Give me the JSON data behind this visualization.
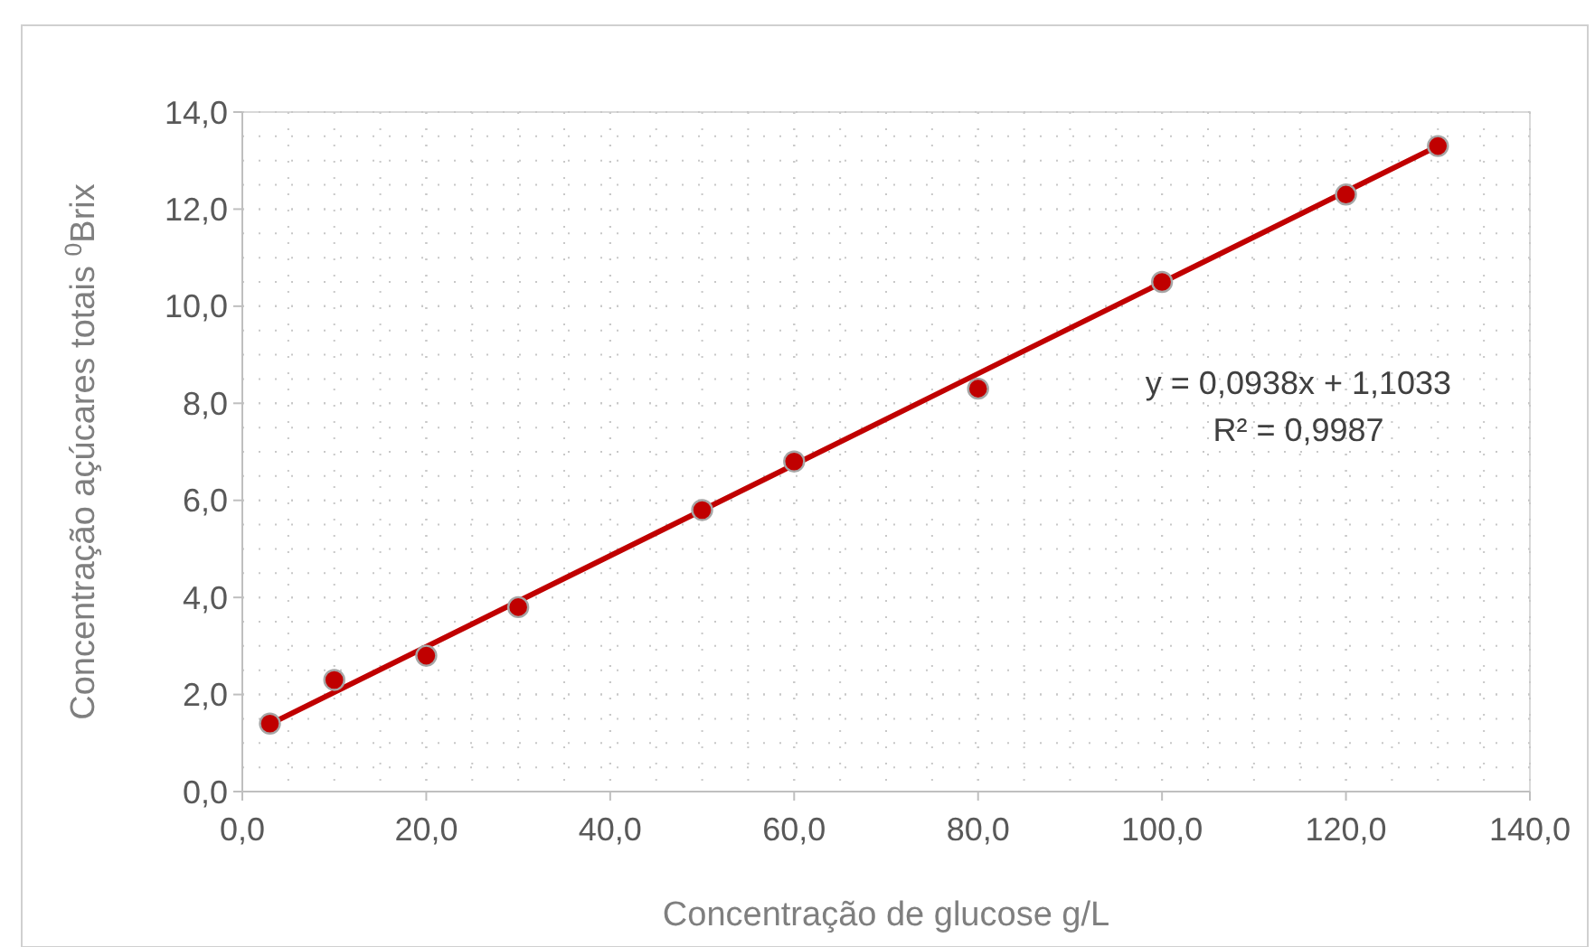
{
  "chart_data": {
    "type": "scatter",
    "xlabel": "Concentração de glucose g/L",
    "ylabel": "Concentração  açúcares totais $^{0}$Brix",
    "annotations": [
      "y = 0,0938x + 1,1033",
      "R² = 0,9987"
    ],
    "series": [
      {
        "color": "#c00000",
        "marker": "circle",
        "x": [
          3,
          10,
          20,
          30,
          50,
          60,
          80,
          100,
          120,
          130
        ],
        "values": [
          1.4,
          2.3,
          2.8,
          3.8,
          5.8,
          6.8,
          8.3,
          10.5,
          12.3,
          13.3
        ]
      },
      {
        "type": "line",
        "color": "#c00000",
        "x": [
          3,
          130
        ],
        "values": [
          1.39,
          13.3
        ]
      }
    ],
    "xlim": [
      0,
      140
    ],
    "ylim": [
      0,
      14
    ],
    "xticks": [
      {
        "value": 0,
        "label": "0,0"
      },
      {
        "value": 20,
        "label": "20,0"
      },
      {
        "value": 40,
        "label": "40,0"
      },
      {
        "value": 60,
        "label": "60,0"
      },
      {
        "value": 80,
        "label": "80,0"
      },
      {
        "value": 100,
        "label": "100,0"
      },
      {
        "value": 120,
        "label": "120,0"
      },
      {
        "value": 140,
        "label": "140,0"
      }
    ],
    "yticks": [
      {
        "value": 0,
        "label": "0,0"
      },
      {
        "value": 2,
        "label": "2,0"
      },
      {
        "value": 4,
        "label": "4,0"
      },
      {
        "value": 6,
        "label": "6,0"
      },
      {
        "value": 8,
        "label": "8,0"
      },
      {
        "value": 10,
        "label": "10,0"
      },
      {
        "value": 12,
        "label": "12,0"
      },
      {
        "value": 14,
        "label": "14,0"
      }
    ],
    "grid": true,
    "line_style": "solid"
  }
}
